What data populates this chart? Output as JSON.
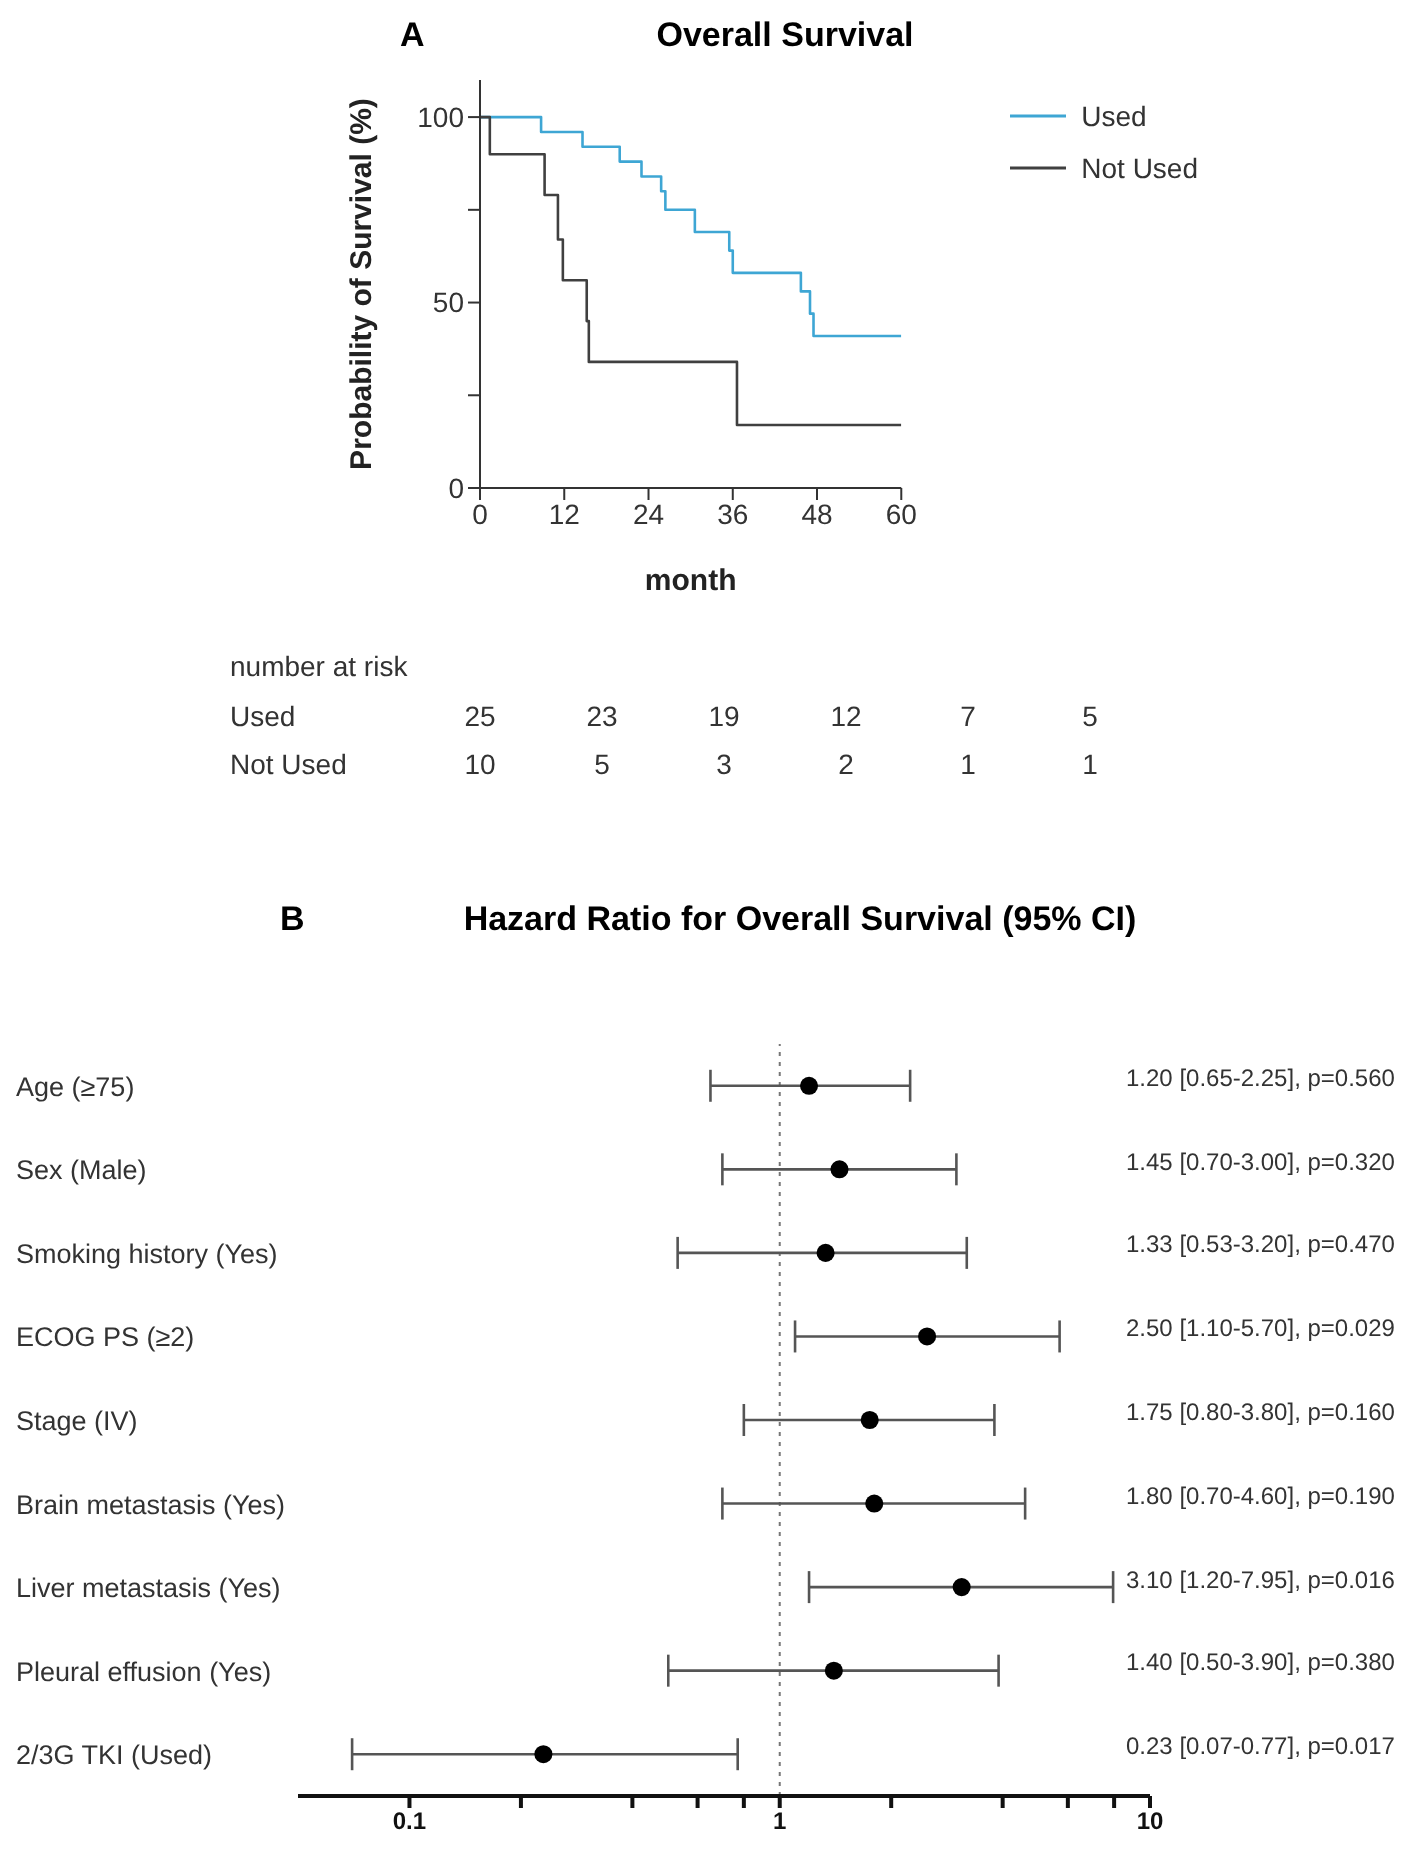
{
  "chart_data": [
    {
      "type": "step",
      "title": "Overall Survival",
      "xlabel": "month",
      "ylabel": "Probability of Survival (%)",
      "xlim": [
        0,
        60
      ],
      "xticks": [
        0,
        12,
        24,
        36,
        48,
        60
      ],
      "ylim": [
        0,
        110
      ],
      "yticks": [
        0,
        {
          "value": 25,
          "label": null
        },
        50,
        {
          "value": 75,
          "label": null
        },
        100
      ],
      "legend": "top right",
      "series": [
        {
          "name": "Used",
          "color": "#3ea6d4",
          "x": [
            0,
            8.7,
            14.6,
            19.9,
            23,
            25.8,
            26.4,
            30.6,
            35.5,
            36,
            45.7,
            47,
            47.5,
            60
          ],
          "values": [
            100,
            96,
            92,
            88,
            84,
            80,
            75,
            69,
            64,
            58,
            53,
            47,
            41,
            41
          ]
        },
        {
          "name": "Not Used",
          "color": "#404040",
          "x": [
            0,
            1.4,
            9.2,
            11.1,
            11.8,
            15.2,
            15.5,
            36.6,
            60
          ],
          "values": [
            100,
            90,
            79,
            67,
            56,
            45,
            34,
            17,
            17
          ]
        }
      ],
      "annotations": [
        "A",
        "number at risk",
        "Used",
        "25",
        "23",
        "19",
        "12",
        "7",
        "5",
        "Not Used",
        "10",
        "5",
        "3",
        "2",
        "1",
        "1"
      ]
    },
    {
      "type": "scatter",
      "title": "Hazard Ratio for Overall Survival (95% CI)",
      "annotations": [
        "B"
      ],
      "orientation": "horizontal",
      "log": "x",
      "marker": "circle",
      "categories": [
        "Age (≥75)",
        "Sex (Male)",
        "Smoking history (Yes)",
        "ECOG PS (≥2)",
        "Stage (IV)",
        "Brain metastasis (Yes)",
        "Liver metastasis (Yes)",
        "Pleural effusion (Yes)",
        "2/3G TKI (Used)"
      ],
      "xlim": [
        0.05,
        10
      ],
      "xticks": [
        0.1,
        {
          "value": 0.2,
          "label": null
        },
        {
          "value": 0.4,
          "label": null
        },
        {
          "value": 0.6,
          "label": null
        },
        {
          "value": 0.8,
          "label": null
        },
        1,
        {
          "value": 2,
          "label": null
        },
        {
          "value": 4,
          "label": null
        },
        {
          "value": 6,
          "label": null
        },
        {
          "value": 8,
          "label": null
        },
        10
      ],
      "ref_lines": [
        {
          "axis": "x",
          "value": 1,
          "label": null,
          "color": "#777777",
          "line_style": "dotted"
        }
      ],
      "series": [
        {
          "color": "#000000",
          "values": [
            1.2,
            1.45,
            1.33,
            2.5,
            1.75,
            1.8,
            3.1,
            1.4,
            0.23
          ],
          "errors": [
            [
              0.65,
              2.25
            ],
            [
              0.7,
              3.0
            ],
            [
              0.53,
              3.2
            ],
            [
              1.1,
              5.7
            ],
            [
              0.8,
              3.8
            ],
            [
              0.7,
              4.6
            ],
            [
              1.2,
              7.95
            ],
            [
              0.5,
              3.9
            ],
            [
              0.07,
              0.77
            ]
          ],
          "value_labels": [
            "1.20 [0.65-2.25], p=0.560",
            "1.45 [0.70-3.00], p=0.320",
            "1.33 [0.53-3.20], p=0.470",
            "2.50 [1.10-5.70], p=0.029",
            "1.75 [0.80-3.80], p=0.160",
            "1.80 [0.70-4.60], p=0.190",
            "3.10 [1.20-7.95], p=0.016",
            "1.40 [0.50-3.90], p=0.380",
            "0.23 [0.07-0.77], p=0.017"
          ]
        }
      ]
    }
  ]
}
